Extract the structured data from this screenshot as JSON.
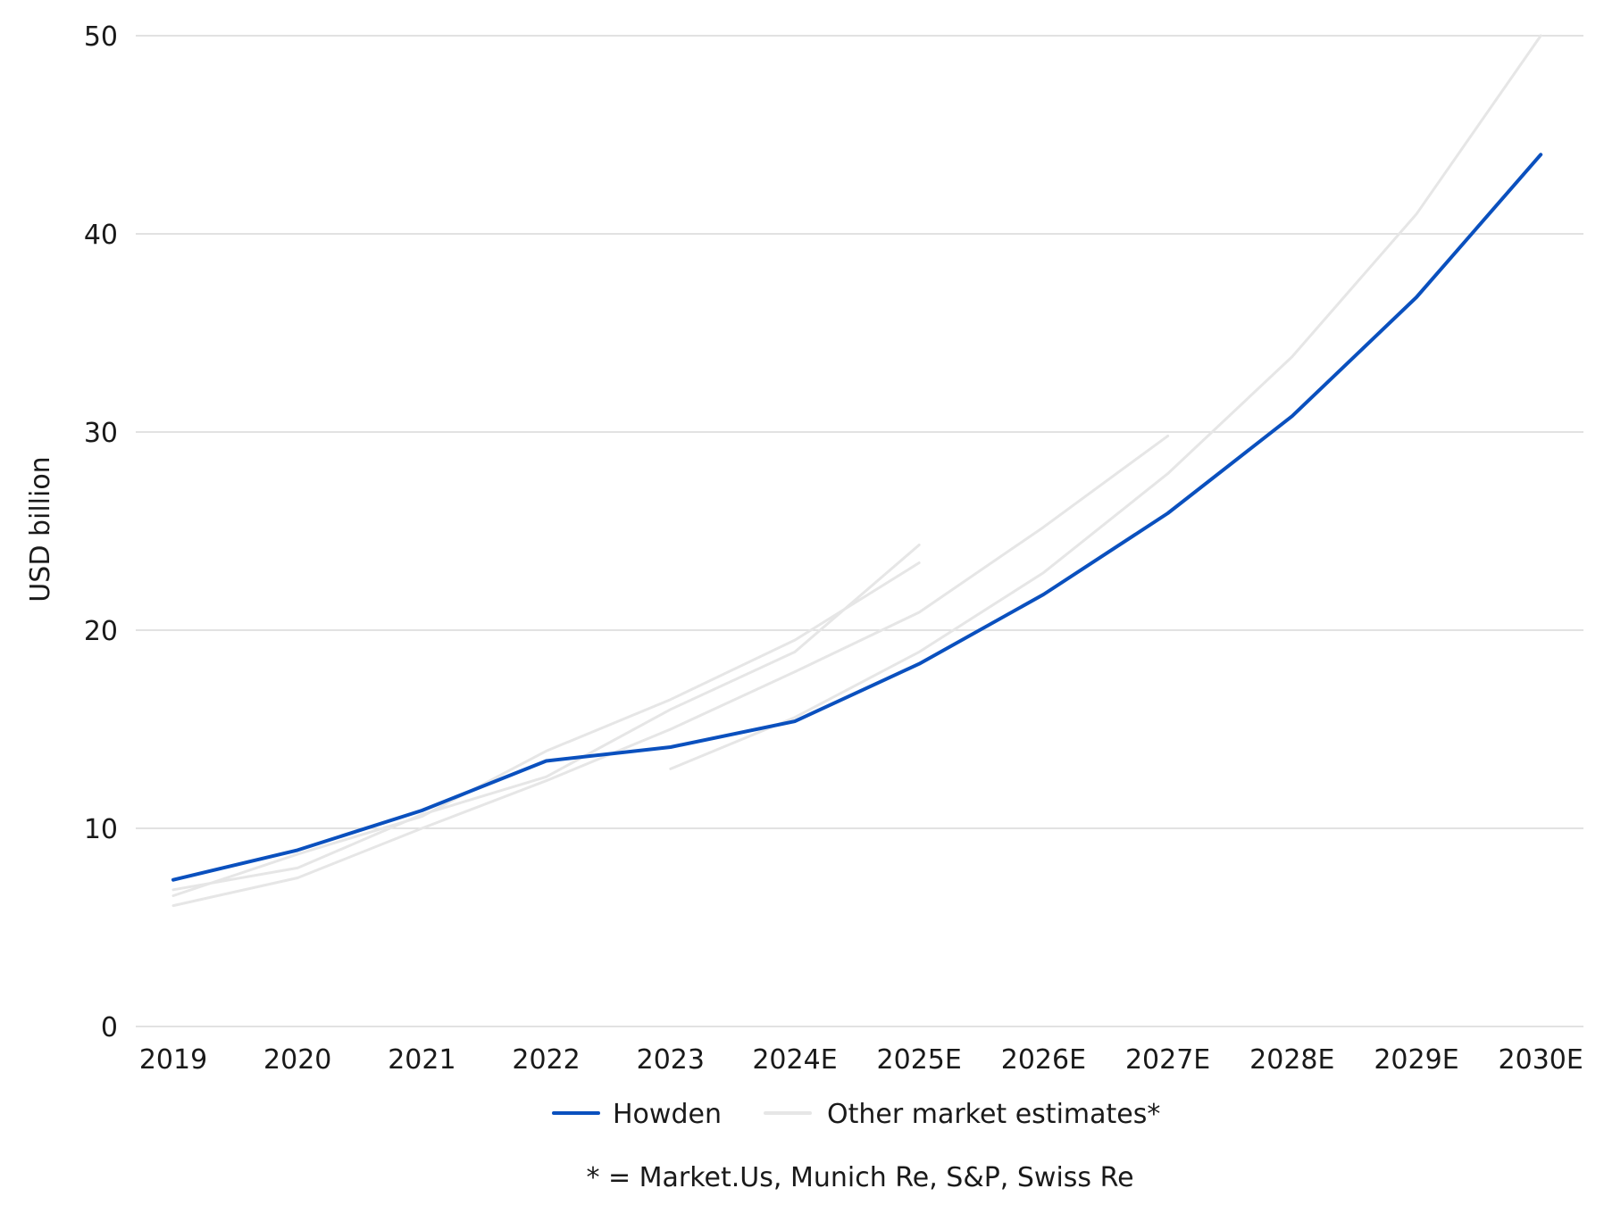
{
  "chart_data": {
    "type": "line",
    "title": "",
    "xlabel": "",
    "ylabel": "USD billion",
    "categories": [
      "2019",
      "2020",
      "2021",
      "2022",
      "2023",
      "2024E",
      "2025E",
      "2026E",
      "2027E",
      "2028E",
      "2029E",
      "2030E"
    ],
    "ylim": [
      0,
      50
    ],
    "yticks": [
      0,
      10,
      20,
      30,
      40,
      50
    ],
    "grid": "horizontal",
    "legend_position": "bottom",
    "series": [
      {
        "name": "Howden",
        "color": "#0a50be",
        "values": [
          7.4,
          8.9,
          10.9,
          13.4,
          14.1,
          15.4,
          18.3,
          21.8,
          25.9,
          30.8,
          36.8,
          44.0
        ]
      },
      {
        "group": "Other market estimates*",
        "color": "#e6e6e6",
        "values": [
          6.6,
          8.7,
          10.6,
          13.9,
          16.5,
          19.5,
          23.4,
          null,
          null,
          null,
          null,
          null
        ]
      },
      {
        "group": "Other market estimates*",
        "color": "#e6e6e6",
        "values": [
          6.9,
          8.0,
          10.7,
          12.6,
          16.0,
          18.9,
          24.3,
          null,
          null,
          null,
          null,
          null
        ]
      },
      {
        "group": "Other market estimates*",
        "color": "#e6e6e6",
        "values": [
          6.1,
          7.5,
          10.0,
          12.4,
          15.0,
          17.9,
          20.9,
          25.2,
          29.8,
          null,
          null,
          null
        ]
      },
      {
        "group": "Other market estimates*",
        "color": "#e6e6e6",
        "values": [
          null,
          null,
          null,
          null,
          13.0,
          15.6,
          18.9,
          22.9,
          27.9,
          33.8,
          41.0,
          50.0
        ]
      }
    ],
    "legend": [
      {
        "label": "Howden",
        "color": "#0a50be"
      },
      {
        "label": "Other market estimates*",
        "color": "#e6e6e6"
      }
    ],
    "footnote": "* = Market.Us, Munich Re, S&P, Swiss Re"
  }
}
